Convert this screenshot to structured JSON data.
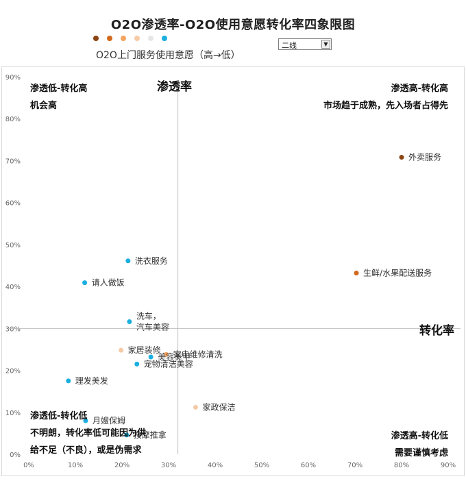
{
  "title": "O2O渗透率-O2O使用意愿转化率四象限图",
  "legend": {
    "label": "O2O上门服务使用意愿（高→低）",
    "colors": [
      "#8B4513",
      "#D2691E",
      "#F4A460",
      "#F5CBA7",
      "#E6E6E6",
      "#1BAFE0"
    ]
  },
  "dropdown": {
    "value": "二线"
  },
  "quadrants": {
    "top_left": {
      "line1": "渗透低-转化高",
      "line2": "机会高"
    },
    "top_right": {
      "line1": "渗透高-转化高",
      "line2": "市场趋于成熟，先入场者占得先"
    },
    "bottom_left": {
      "line1": "渗透低-转化低",
      "line2": "不明朗，转化率低可能因为供",
      "line3": "给不足（不良），或是伪需求"
    },
    "bottom_right": {
      "line1": "渗透高-转化低",
      "line2": "需要谨慎考虑"
    }
  },
  "chart_data": {
    "type": "scatter",
    "title": "O2O渗透率-O2O使用意愿转化率四象限图",
    "xlabel": "转化率",
    "ylabel": "渗透率",
    "xlim": [
      0,
      90
    ],
    "ylim": [
      0,
      90
    ],
    "xticks": [
      "0%",
      "10%",
      "20%",
      "30%",
      "40%",
      "50%",
      "60%",
      "70%",
      "80%",
      "90%"
    ],
    "yticks": [
      "0%",
      "10%",
      "20%",
      "30%",
      "40%",
      "50%",
      "60%",
      "70%",
      "80%",
      "90%"
    ],
    "quadrant_divider": {
      "x": 32,
      "y": 30
    },
    "points": [
      {
        "label": "外卖服务",
        "x": 80,
        "y": 70.8,
        "color": "#8B4513"
      },
      {
        "label": "生鲜/水果配送服务",
        "x": 70.3,
        "y": 43.2,
        "color": "#D2691E"
      },
      {
        "label": "家政保洁",
        "x": 35.8,
        "y": 11.2,
        "color": "#F5CBA7"
      },
      {
        "label": "家居装修",
        "x": 19.8,
        "y": 24.8,
        "color": "#F5CBA7"
      },
      {
        "label": "家电维修清洗",
        "x": 29.5,
        "y": 23.8,
        "color": "#F4A460"
      },
      {
        "label": "洗衣服务",
        "x": 21.3,
        "y": 46.1,
        "color": "#1BAFE0"
      },
      {
        "label": "请人做饭",
        "x": 12,
        "y": 40.9,
        "color": "#1BAFE0"
      },
      {
        "label": "洗车，\n汽车美容",
        "x": 21.6,
        "y": 31.6,
        "color": "#1BAFE0"
      },
      {
        "label": "美容美甲",
        "x": 26.2,
        "y": 23.2,
        "color": "#1BAFE0"
      },
      {
        "label": "宠物清洁美容",
        "x": 23.2,
        "y": 21.5,
        "color": "#1BAFE0"
      },
      {
        "label": "理发美发",
        "x": 8.5,
        "y": 17.5,
        "color": "#1BAFE0"
      },
      {
        "label": "月嫂保姆",
        "x": 12.2,
        "y": 8,
        "color": "#1BAFE0"
      },
      {
        "label": "按摩推拿",
        "x": 21,
        "y": 4.6,
        "color": "#1BAFE0"
      }
    ]
  }
}
